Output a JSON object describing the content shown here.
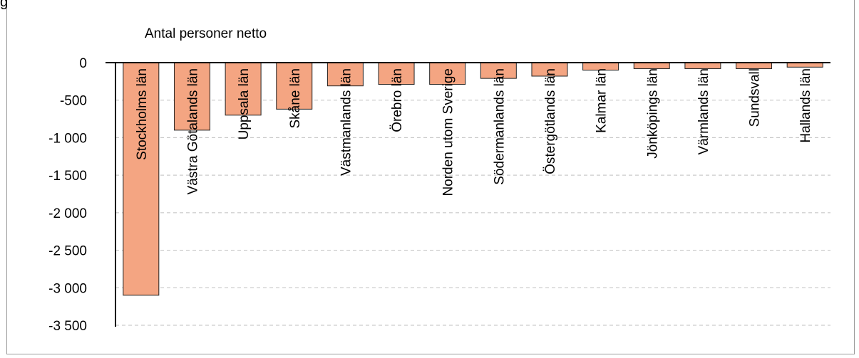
{
  "corner_text": "g",
  "chart_data": {
    "type": "bar",
    "ylabel": "Antal personer netto",
    "categories": [
      "Stockholms län",
      "Västra Götalands län",
      "Uppsala län",
      "Skåne län",
      "Västmanlands län",
      "Örebro län",
      "Norden utom Sverige",
      "Södermanlands län",
      "Östergötlands län",
      "Kalmar län",
      "Jönköpings län",
      "Värmlands län",
      "Sundsvall",
      "Hallands län"
    ],
    "values": [
      -3100,
      -900,
      -700,
      -620,
      -310,
      -290,
      -290,
      -210,
      -180,
      -100,
      -80,
      -80,
      -80,
      -60
    ],
    "ylim": [
      -3500,
      0
    ],
    "yticks": [
      0,
      -500,
      -1000,
      -1500,
      -2000,
      -2500,
      -3000,
      -3500
    ],
    "ytick_labels": [
      "0",
      "-500",
      "-1 000",
      "-1 500",
      "-2 000",
      "-2 500",
      "-3 000",
      "-3 500"
    ],
    "grid": true,
    "bar_color": "#F4A582"
  }
}
